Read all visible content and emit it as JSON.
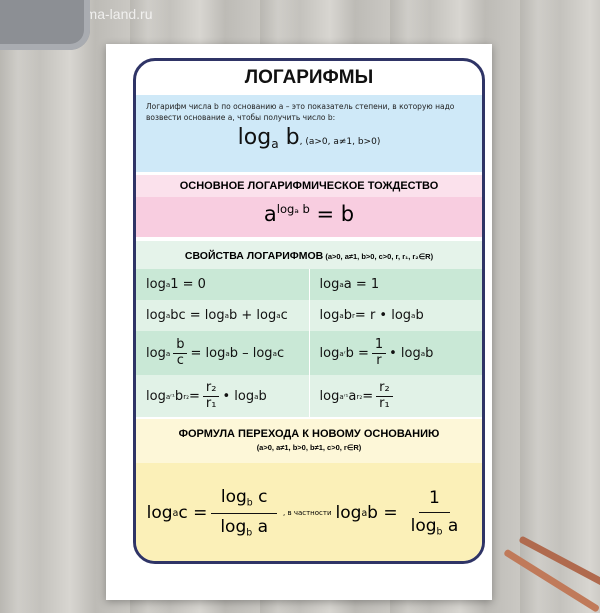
{
  "watermark": "www.sima-land.ru",
  "title": "ЛОГАРИФМЫ",
  "definition": {
    "text": "Логарифм числа b по основанию a – это показатель степени, в которую надо возвести основание a, чтобы получить число b:",
    "formula": [
      [
        "n",
        "log"
      ],
      [
        "sub",
        "a"
      ],
      [
        "n",
        " b"
      ]
    ],
    "condition": ", (a>0, a≠1, b>0)"
  },
  "identity": {
    "heading": "ОСНОВНОЕ ЛОГАРИФМИЧЕСКОЕ ТОЖДЕСТВО",
    "formula": [
      [
        "n",
        "a"
      ],
      [
        "sup",
        "logₐ b"
      ],
      [
        "n",
        " = b"
      ]
    ]
  },
  "properties": {
    "heading": "СВОЙСТВА ЛОГАРИФМОВ",
    "condition": " (a>0, a≠1, b>0, c>0, r, r₁, r₂∈R)",
    "rows": [
      [
        [
          [
            "n",
            "log"
          ],
          [
            "sub",
            "a"
          ],
          [
            "n",
            " 1 = 0"
          ]
        ],
        [
          [
            "n",
            "log"
          ],
          [
            "sub",
            "a"
          ],
          [
            "n",
            " a = 1"
          ]
        ]
      ],
      [
        [
          [
            "n",
            "log"
          ],
          [
            "sub",
            "a"
          ],
          [
            "n",
            " bc = log"
          ],
          [
            "sub",
            "a"
          ],
          [
            "n",
            " b + log"
          ],
          [
            "sub",
            "a"
          ],
          [
            "n",
            " c"
          ]
        ],
        [
          [
            "n",
            "log"
          ],
          [
            "sub",
            "a"
          ],
          [
            "n",
            " b"
          ],
          [
            "sup",
            "r"
          ],
          [
            "n",
            " = r • log"
          ],
          [
            "sub",
            "a"
          ],
          [
            "n",
            " b"
          ]
        ]
      ],
      [
        [
          [
            "n",
            "log"
          ],
          [
            "sub",
            "a"
          ],
          [
            "frac",
            "b",
            "c"
          ],
          [
            "n",
            "= log"
          ],
          [
            "sub",
            "a"
          ],
          [
            "n",
            " b – log"
          ],
          [
            "sub",
            "a"
          ],
          [
            "n",
            " c"
          ]
        ],
        [
          [
            "n",
            "log"
          ],
          [
            "sub",
            "aʳ"
          ],
          [
            "n",
            " b = "
          ],
          [
            "frac",
            "1",
            "r"
          ],
          [
            "n",
            " • log"
          ],
          [
            "sub",
            "a"
          ],
          [
            "n",
            " b"
          ]
        ]
      ],
      [
        [
          [
            "n",
            "log"
          ],
          [
            "sub",
            "aʳ¹"
          ],
          [
            "n",
            " b"
          ],
          [
            "sup",
            "r₂"
          ],
          [
            "n",
            " = "
          ],
          [
            "frac",
            "r₂",
            "r₁"
          ],
          [
            "n",
            " • log"
          ],
          [
            "sub",
            "a"
          ],
          [
            "n",
            " b"
          ]
        ],
        [
          [
            "n",
            "log"
          ],
          [
            "sub",
            "aʳ¹"
          ],
          [
            "n",
            " a"
          ],
          [
            "sup",
            "r₂"
          ],
          [
            "n",
            " = "
          ],
          [
            "frac",
            "r₂",
            "r₁"
          ]
        ]
      ]
    ]
  },
  "change_of_base": {
    "heading": "ФОРМУЛА ПЕРЕХОДА К НОВОМУ ОСНОВАНИЮ",
    "condition": "(a>0, a≠1, b>0, b≠1, c>0, r∈R)",
    "formula": [
      [
        "n",
        "log"
      ],
      [
        "sub",
        "a"
      ],
      [
        "n",
        " c = "
      ],
      [
        "frac",
        "log_b c",
        "log_b a"
      ],
      [
        "note",
        ", в частности"
      ],
      [
        "n",
        "log"
      ],
      [
        "sub",
        "a"
      ],
      [
        "n",
        " b = "
      ],
      [
        "frac",
        "1",
        "log_b a"
      ]
    ]
  },
  "colors": {
    "frame": "#2f3466",
    "blue": "#cfe9f8",
    "pink": "#f8cde0",
    "green": "#c9e8d6",
    "yellow": "#fbf0b8"
  }
}
